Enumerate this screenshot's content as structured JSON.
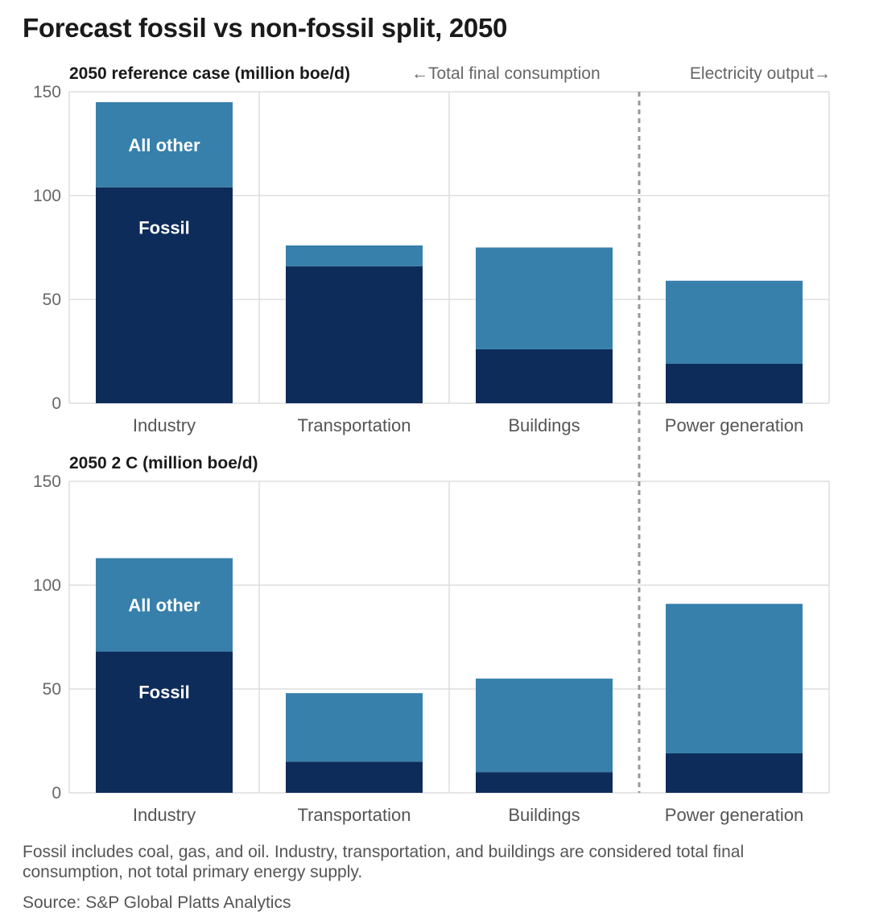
{
  "title": "Forecast fossil vs non-fossil split, 2050",
  "header": {
    "left_arrow_label": "←Total final consumption",
    "right_arrow_label": "Electricity output→"
  },
  "colors": {
    "fossil": "#0e2c5a",
    "all_other": "#3780ab",
    "grid": "#dddddd",
    "divider": "#999999"
  },
  "chart_data": [
    {
      "type": "bar",
      "stacked": true,
      "title": "2050 reference case (million boe/d)",
      "categories": [
        "Industry",
        "Transportation",
        "Buildings",
        "Power generation"
      ],
      "series": [
        {
          "name": "Fossil",
          "values": [
            104,
            66,
            26,
            19
          ]
        },
        {
          "name": "All other",
          "values": [
            41,
            10,
            49,
            40
          ]
        }
      ],
      "ylim": [
        0,
        150
      ],
      "yticks": [
        0,
        50,
        100,
        150
      ],
      "grid": true,
      "divider_before": "Power generation"
    },
    {
      "type": "bar",
      "stacked": true,
      "title": "2050 2 C (million boe/d)",
      "categories": [
        "Industry",
        "Transportation",
        "Buildings",
        "Power generation"
      ],
      "series": [
        {
          "name": "Fossil",
          "values": [
            68,
            15,
            10,
            19
          ]
        },
        {
          "name": "All other",
          "values": [
            45,
            33,
            45,
            72
          ]
        }
      ],
      "ylim": [
        0,
        150
      ],
      "yticks": [
        0,
        50,
        100,
        150
      ],
      "grid": true,
      "divider_before": "Power generation"
    }
  ],
  "footnote": "Fossil includes coal, gas, and oil. Industry, transportation, and buildings are considered total final consumption, not total primary energy supply.",
  "source": "Source: S&P Global Platts Analytics"
}
